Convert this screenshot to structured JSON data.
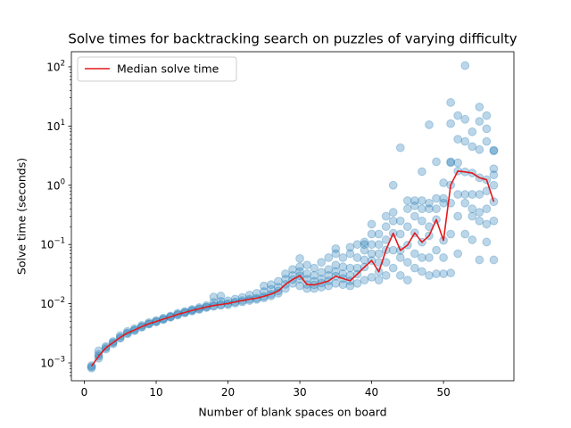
{
  "chart_data": {
    "type": "scatter",
    "title": "Solve times for backtracking search on puzzles of varying difficulty",
    "xlabel": "Number of blank spaces on board",
    "ylabel": "Solve time (seconds)",
    "xlim": [
      -1.8,
      59.8
    ],
    "ylim": [
      0.0005,
      180
    ],
    "yscale": "log",
    "x_ticks": [
      0,
      10,
      20,
      30,
      40,
      50
    ],
    "y_ticks": [
      {
        "value": 0.001,
        "base": "10",
        "exp": "−3"
      },
      {
        "value": 0.01,
        "base": "10",
        "exp": "−2"
      },
      {
        "value": 0.1,
        "base": "10",
        "exp": "−1"
      },
      {
        "value": 1,
        "base": "10",
        "exp": "0"
      },
      {
        "value": 10,
        "base": "10",
        "exp": "1"
      },
      {
        "value": 100,
        "base": "10",
        "exp": "2"
      }
    ],
    "grid": false,
    "legend_position": "top-left",
    "colors": {
      "points": "#1f77b4",
      "median": "#e31a1c"
    },
    "series": [
      {
        "type": "line",
        "name": "Median solve time",
        "x": [
          1,
          2,
          3,
          4,
          5,
          6,
          7,
          8,
          9,
          10,
          11,
          12,
          13,
          14,
          15,
          16,
          17,
          18,
          19,
          20,
          21,
          22,
          23,
          24,
          25,
          26,
          27,
          28,
          29,
          30,
          31,
          32,
          33,
          34,
          35,
          36,
          37,
          38,
          39,
          40,
          41,
          42,
          43,
          44,
          45,
          46,
          47,
          48,
          49,
          50,
          51,
          52,
          53,
          54,
          55,
          56,
          57
        ],
        "y": [
          0.00088,
          0.0013,
          0.0018,
          0.0022,
          0.0027,
          0.0032,
          0.0036,
          0.0041,
          0.0046,
          0.005,
          0.0055,
          0.006,
          0.0066,
          0.0071,
          0.0077,
          0.0082,
          0.0088,
          0.0093,
          0.0097,
          0.0101,
          0.0107,
          0.0113,
          0.0119,
          0.0124,
          0.0133,
          0.0145,
          0.0164,
          0.0212,
          0.0256,
          0.0297,
          0.0211,
          0.0208,
          0.0223,
          0.0243,
          0.0291,
          0.0266,
          0.0244,
          0.0315,
          0.0416,
          0.0537,
          0.0345,
          0.0811,
          0.155,
          0.0795,
          0.0977,
          0.157,
          0.109,
          0.141,
          0.263,
          0.117,
          1.01,
          1.74,
          1.68,
          1.61,
          1.34,
          1.24,
          0.528
        ]
      },
      {
        "type": "scatter",
        "name": "",
        "points": [
          [
            1,
            0.00082
          ],
          [
            1,
            0.00086
          ],
          [
            1,
            0.0009
          ],
          [
            2,
            0.0012
          ],
          [
            2,
            0.0013
          ],
          [
            2,
            0.0014
          ],
          [
            2,
            0.0016
          ],
          [
            3,
            0.0017
          ],
          [
            3,
            0.0018
          ],
          [
            3,
            0.0019
          ],
          [
            4,
            0.0021
          ],
          [
            4,
            0.0022
          ],
          [
            4,
            0.0023
          ],
          [
            5,
            0.0026
          ],
          [
            5,
            0.0027
          ],
          [
            5,
            0.0029
          ],
          [
            6,
            0.0031
          ],
          [
            6,
            0.0032
          ],
          [
            6,
            0.0034
          ],
          [
            7,
            0.0035
          ],
          [
            7,
            0.0036
          ],
          [
            7,
            0.0038
          ],
          [
            8,
            0.004
          ],
          [
            8,
            0.0041
          ],
          [
            8,
            0.0043
          ],
          [
            9,
            0.0045
          ],
          [
            9,
            0.0046
          ],
          [
            9,
            0.0048
          ],
          [
            10,
            0.0049
          ],
          [
            10,
            0.005
          ],
          [
            10,
            0.0052
          ],
          [
            11,
            0.0054
          ],
          [
            11,
            0.0055
          ],
          [
            11,
            0.0057
          ],
          [
            12,
            0.0059
          ],
          [
            12,
            0.006
          ],
          [
            12,
            0.0062
          ],
          [
            13,
            0.0064
          ],
          [
            13,
            0.0066
          ],
          [
            13,
            0.0069
          ],
          [
            14,
            0.007
          ],
          [
            14,
            0.0071
          ],
          [
            14,
            0.0074
          ],
          [
            15,
            0.0075
          ],
          [
            15,
            0.0077
          ],
          [
            15,
            0.008
          ],
          [
            16,
            0.008
          ],
          [
            16,
            0.0082
          ],
          [
            16,
            0.0086
          ],
          [
            17,
            0.0086
          ],
          [
            17,
            0.0088
          ],
          [
            17,
            0.0093
          ],
          [
            18,
            0.009
          ],
          [
            18,
            0.0093
          ],
          [
            18,
            0.0105
          ],
          [
            18,
            0.013
          ],
          [
            19,
            0.0094
          ],
          [
            19,
            0.0097
          ],
          [
            19,
            0.011
          ],
          [
            19,
            0.0135
          ],
          [
            20,
            0.0096
          ],
          [
            20,
            0.0101
          ],
          [
            20,
            0.0112
          ],
          [
            21,
            0.0102
          ],
          [
            21,
            0.0107
          ],
          [
            21,
            0.012
          ],
          [
            22,
            0.0107
          ],
          [
            22,
            0.0113
          ],
          [
            22,
            0.0128
          ],
          [
            23,
            0.0113
          ],
          [
            23,
            0.0119
          ],
          [
            23,
            0.014
          ],
          [
            24,
            0.0118
          ],
          [
            24,
            0.0124
          ],
          [
            24,
            0.015
          ],
          [
            25,
            0.0125
          ],
          [
            25,
            0.0133
          ],
          [
            25,
            0.016
          ],
          [
            25,
            0.02
          ],
          [
            26,
            0.0135
          ],
          [
            26,
            0.0145
          ],
          [
            26,
            0.0175
          ],
          [
            26,
            0.021
          ],
          [
            27,
            0.015
          ],
          [
            27,
            0.0164
          ],
          [
            27,
            0.019
          ],
          [
            27,
            0.024
          ],
          [
            28,
            0.018
          ],
          [
            28,
            0.0212
          ],
          [
            28,
            0.026
          ],
          [
            28,
            0.032
          ],
          [
            29,
            0.022
          ],
          [
            29,
            0.0256
          ],
          [
            29,
            0.03
          ],
          [
            29,
            0.038
          ],
          [
            30,
            0.02
          ],
          [
            30,
            0.026
          ],
          [
            30,
            0.0297
          ],
          [
            30,
            0.035
          ],
          [
            30,
            0.042
          ],
          [
            30,
            0.058
          ],
          [
            31,
            0.018
          ],
          [
            31,
            0.0211
          ],
          [
            31,
            0.026
          ],
          [
            31,
            0.032
          ],
          [
            31,
            0.045
          ],
          [
            32,
            0.018
          ],
          [
            32,
            0.0208
          ],
          [
            32,
            0.024
          ],
          [
            32,
            0.03
          ],
          [
            32,
            0.04
          ],
          [
            33,
            0.019
          ],
          [
            33,
            0.0223
          ],
          [
            33,
            0.026
          ],
          [
            33,
            0.034
          ],
          [
            33,
            0.05
          ],
          [
            34,
            0.02
          ],
          [
            34,
            0.0243
          ],
          [
            34,
            0.03
          ],
          [
            34,
            0.038
          ],
          [
            34,
            0.06
          ],
          [
            35,
            0.022
          ],
          [
            35,
            0.0291
          ],
          [
            35,
            0.035
          ],
          [
            35,
            0.045
          ],
          [
            35,
            0.07
          ],
          [
            35,
            0.085
          ],
          [
            36,
            0.021
          ],
          [
            36,
            0.0266
          ],
          [
            36,
            0.032
          ],
          [
            36,
            0.042
          ],
          [
            36,
            0.06
          ],
          [
            37,
            0.02
          ],
          [
            37,
            0.0244
          ],
          [
            37,
            0.03
          ],
          [
            37,
            0.04
          ],
          [
            37,
            0.07
          ],
          [
            37,
            0.09
          ],
          [
            38,
            0.022
          ],
          [
            38,
            0.0315
          ],
          [
            38,
            0.04
          ],
          [
            38,
            0.06
          ],
          [
            38,
            0.1
          ],
          [
            39,
            0.025
          ],
          [
            39,
            0.0416
          ],
          [
            39,
            0.055
          ],
          [
            39,
            0.08
          ],
          [
            39,
            0.1
          ],
          [
            39,
            0.11
          ],
          [
            40,
            0.028
          ],
          [
            40,
            0.0537
          ],
          [
            40,
            0.07
          ],
          [
            40,
            0.1
          ],
          [
            40,
            0.15
          ],
          [
            40,
            0.22
          ],
          [
            41,
            0.025
          ],
          [
            41,
            0.0345
          ],
          [
            41,
            0.05
          ],
          [
            41,
            0.07
          ],
          [
            41,
            0.1
          ],
          [
            41,
            0.15
          ],
          [
            42,
            0.03
          ],
          [
            42,
            0.05
          ],
          [
            42,
            0.0811
          ],
          [
            42,
            0.12
          ],
          [
            42,
            0.2
          ],
          [
            42,
            0.3
          ],
          [
            43,
            0.04
          ],
          [
            43,
            0.08
          ],
          [
            43,
            0.155
          ],
          [
            43,
            0.25
          ],
          [
            43,
            0.35
          ],
          [
            43,
            1.0
          ],
          [
            44,
            0.03
          ],
          [
            44,
            0.06
          ],
          [
            44,
            0.0795
          ],
          [
            44,
            0.15
          ],
          [
            44,
            0.25
          ],
          [
            44,
            4.3
          ],
          [
            45,
            0.025
          ],
          [
            45,
            0.05
          ],
          [
            45,
            0.0977
          ],
          [
            45,
            0.2
          ],
          [
            45,
            0.4
          ],
          [
            45,
            0.55
          ],
          [
            46,
            0.04
          ],
          [
            46,
            0.07
          ],
          [
            46,
            0.157
          ],
          [
            46,
            0.3
          ],
          [
            46,
            0.45
          ],
          [
            46,
            0.55
          ],
          [
            47,
            0.035
          ],
          [
            47,
            0.06
          ],
          [
            47,
            0.109
          ],
          [
            47,
            0.25
          ],
          [
            47,
            0.4
          ],
          [
            47,
            0.55
          ],
          [
            47,
            1.7
          ],
          [
            48,
            0.03
          ],
          [
            48,
            0.06
          ],
          [
            48,
            0.141
          ],
          [
            48,
            0.2
          ],
          [
            48,
            0.4
          ],
          [
            48,
            0.5
          ],
          [
            48,
            10.5
          ],
          [
            49,
            0.032
          ],
          [
            49,
            0.08
          ],
          [
            49,
            0.263
          ],
          [
            49,
            0.4
          ],
          [
            49,
            0.6
          ],
          [
            49,
            2.5
          ],
          [
            50,
            0.032
          ],
          [
            50,
            0.06
          ],
          [
            50,
            0.117
          ],
          [
            50,
            0.5
          ],
          [
            50,
            0.6
          ],
          [
            50,
            1.1
          ],
          [
            51,
            0.033
          ],
          [
            51,
            0.15
          ],
          [
            51,
            0.5
          ],
          [
            51,
            1.01
          ],
          [
            51,
            2.5
          ],
          [
            51,
            2.4
          ],
          [
            51,
            11.0
          ],
          [
            51,
            25.0
          ],
          [
            52,
            0.07
          ],
          [
            52,
            0.3
          ],
          [
            52,
            0.7
          ],
          [
            52,
            1.74
          ],
          [
            52,
            2.4
          ],
          [
            52,
            6.0
          ],
          [
            52,
            15.0
          ],
          [
            53,
            0.15
          ],
          [
            53,
            0.5
          ],
          [
            53,
            0.7
          ],
          [
            53,
            1.68
          ],
          [
            53,
            5.5
          ],
          [
            53,
            13.0
          ],
          [
            53,
            105.0
          ],
          [
            54,
            0.12
          ],
          [
            54,
            0.3
          ],
          [
            54,
            0.4
          ],
          [
            54,
            0.7
          ],
          [
            54,
            1.61
          ],
          [
            54,
            4.5
          ],
          [
            54,
            8.0
          ],
          [
            55,
            0.055
          ],
          [
            55,
            0.25
          ],
          [
            55,
            0.35
          ],
          [
            55,
            0.7
          ],
          [
            55,
            1.34
          ],
          [
            55,
            4.0
          ],
          [
            55,
            12.0
          ],
          [
            55,
            21.0
          ],
          [
            56,
            0.11
          ],
          [
            56,
            0.22
          ],
          [
            56,
            0.4
          ],
          [
            56,
            0.8
          ],
          [
            56,
            1.24
          ],
          [
            56,
            5.5
          ],
          [
            56,
            9.0
          ],
          [
            56,
            15.0
          ],
          [
            57,
            0.055
          ],
          [
            57,
            0.25
          ],
          [
            57,
            0.528
          ],
          [
            57,
            1.0
          ],
          [
            57,
            1.5
          ],
          [
            57,
            1.9
          ],
          [
            57,
            3.8
          ],
          [
            57,
            3.9
          ]
        ]
      }
    ]
  }
}
